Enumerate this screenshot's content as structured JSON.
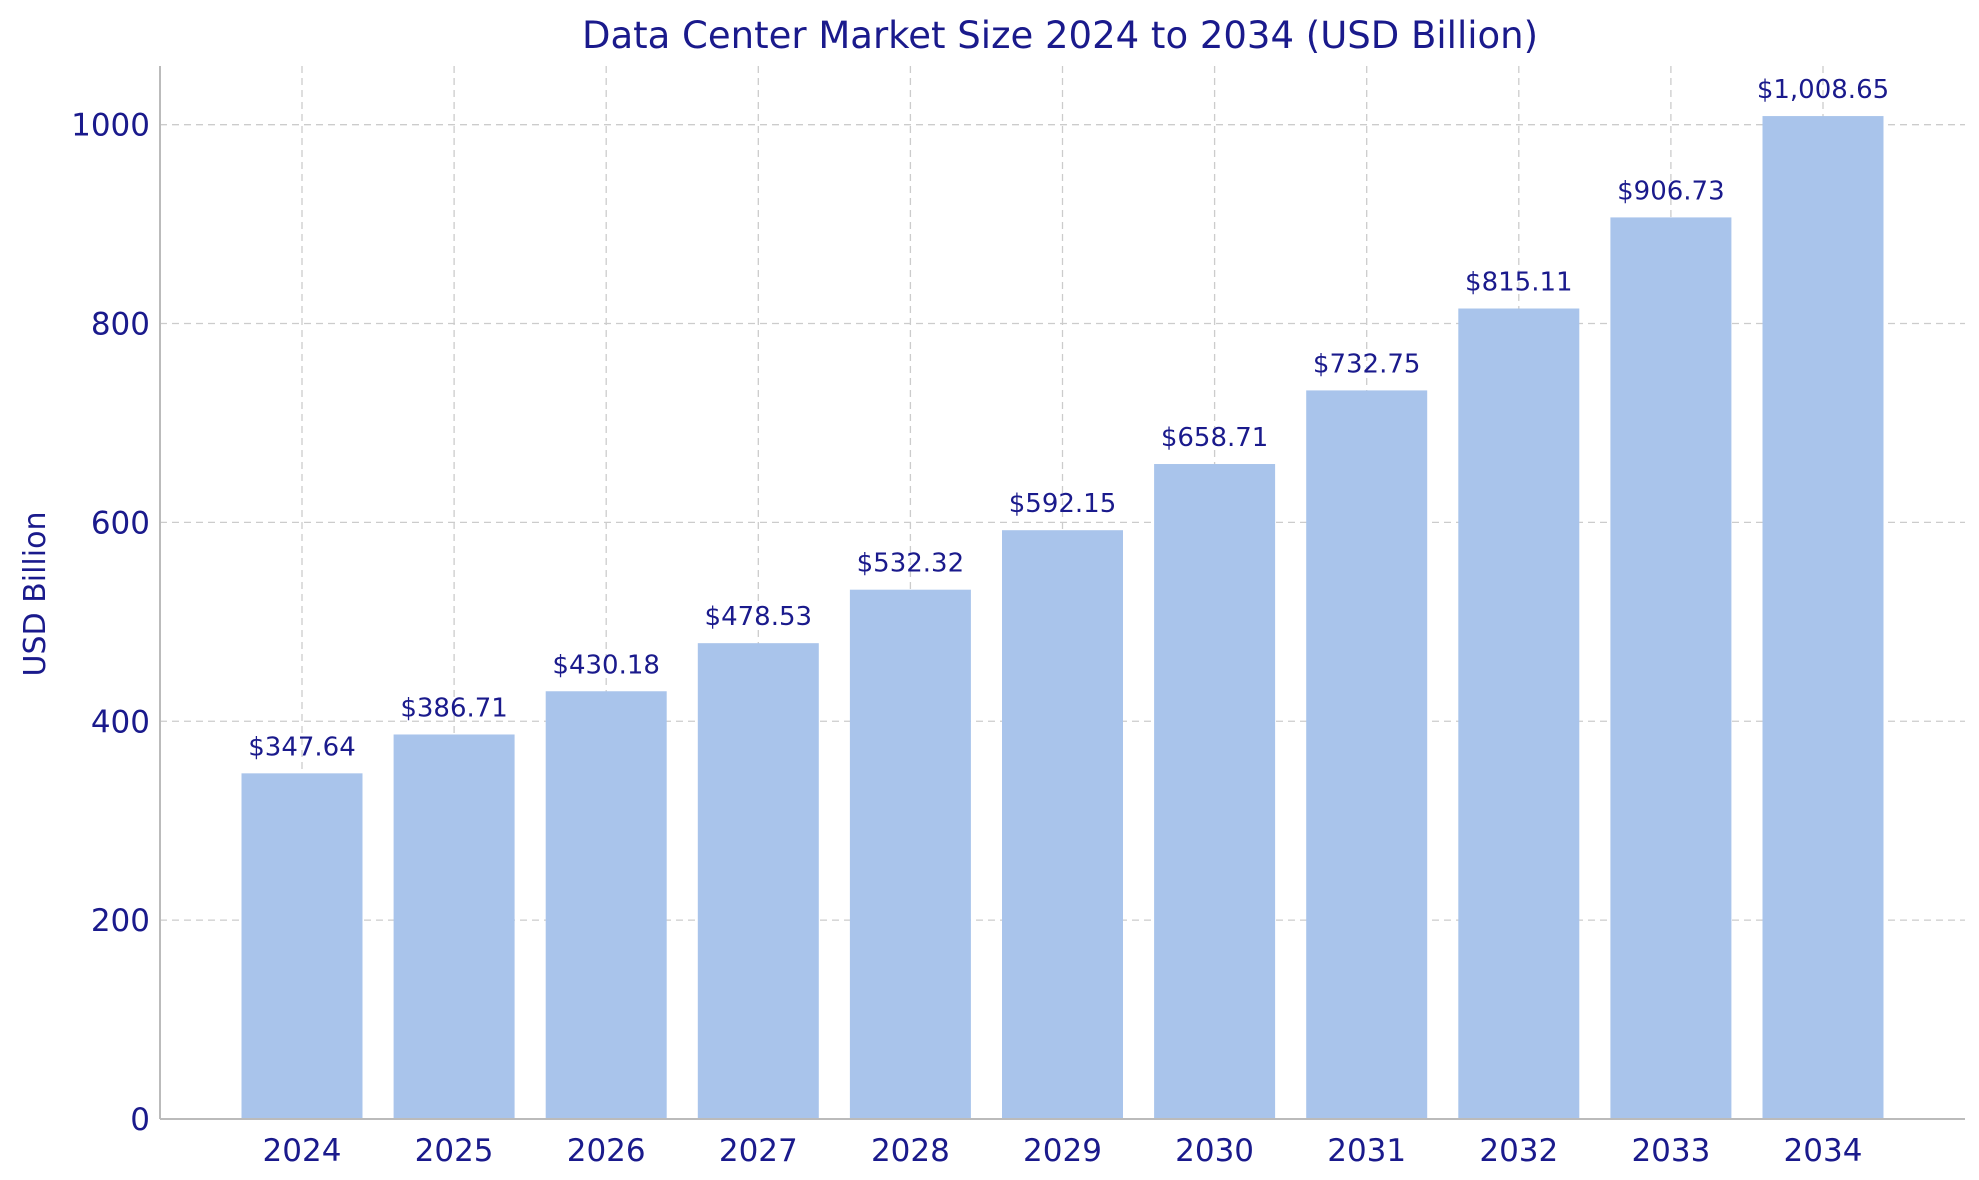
{
  "chart_data": {
    "type": "bar",
    "title": "Data Center Market Size 2024 to 2034 (USD Billion)",
    "xlabel": "",
    "ylabel": "USD Billion",
    "categories": [
      "2024",
      "2025",
      "2026",
      "2027",
      "2028",
      "2029",
      "2030",
      "2031",
      "2032",
      "2033",
      "2034"
    ],
    "values": [
      347.64,
      386.71,
      430.18,
      478.53,
      532.32,
      592.15,
      658.71,
      732.75,
      815.11,
      906.73,
      1008.65
    ],
    "value_labels": [
      "$347.64",
      "$386.71",
      "$430.18",
      "$478.53",
      "$532.32",
      "$592.15",
      "$658.71",
      "$732.75",
      "$815.11",
      "$906.73",
      "$1,008.65"
    ],
    "yticks": [
      0,
      200,
      400,
      600,
      800,
      1000
    ],
    "ylim": [
      0,
      1059
    ],
    "grid": true,
    "legend": "none",
    "colors": {
      "bar": "#a9c4eb",
      "text": "#1a1a8c"
    }
  }
}
